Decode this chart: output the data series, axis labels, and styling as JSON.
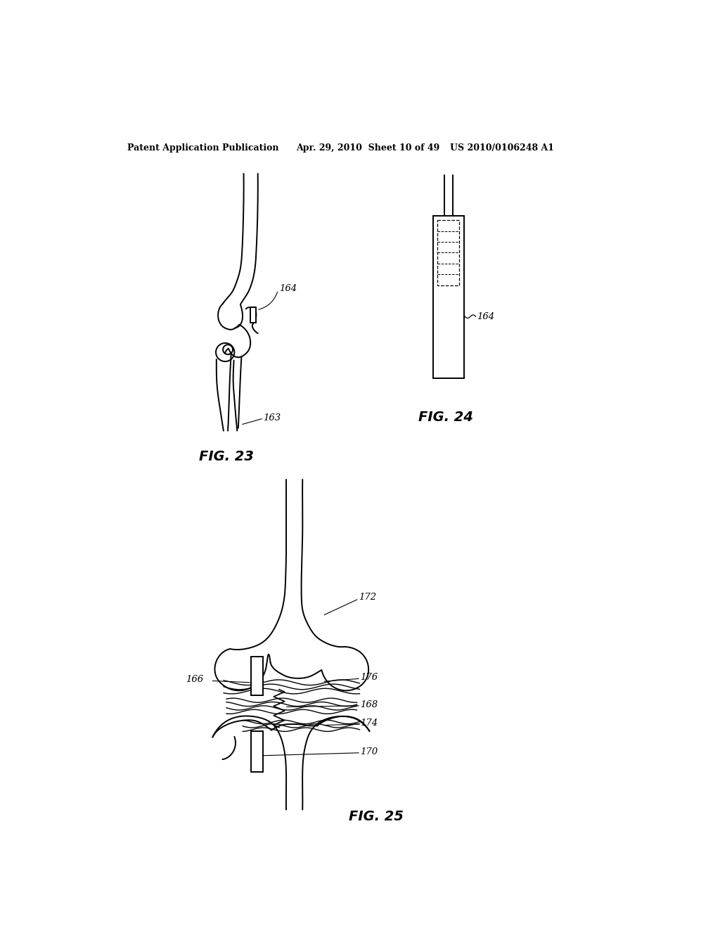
{
  "bg_color": "#ffffff",
  "line_color": "#000000",
  "header_left": "Patent Application Publication",
  "header_mid": "Apr. 29, 2010  Sheet 10 of 49",
  "header_right": "US 2010/0106248 A1",
  "fig23_label": "FIG. 23",
  "fig24_label": "FIG. 24",
  "fig25_label": "FIG. 25",
  "label_163": "163",
  "label_164": "164",
  "label_166": "166",
  "label_168": "168",
  "label_170": "170",
  "label_172": "172",
  "label_174": "174",
  "label_176": "176"
}
